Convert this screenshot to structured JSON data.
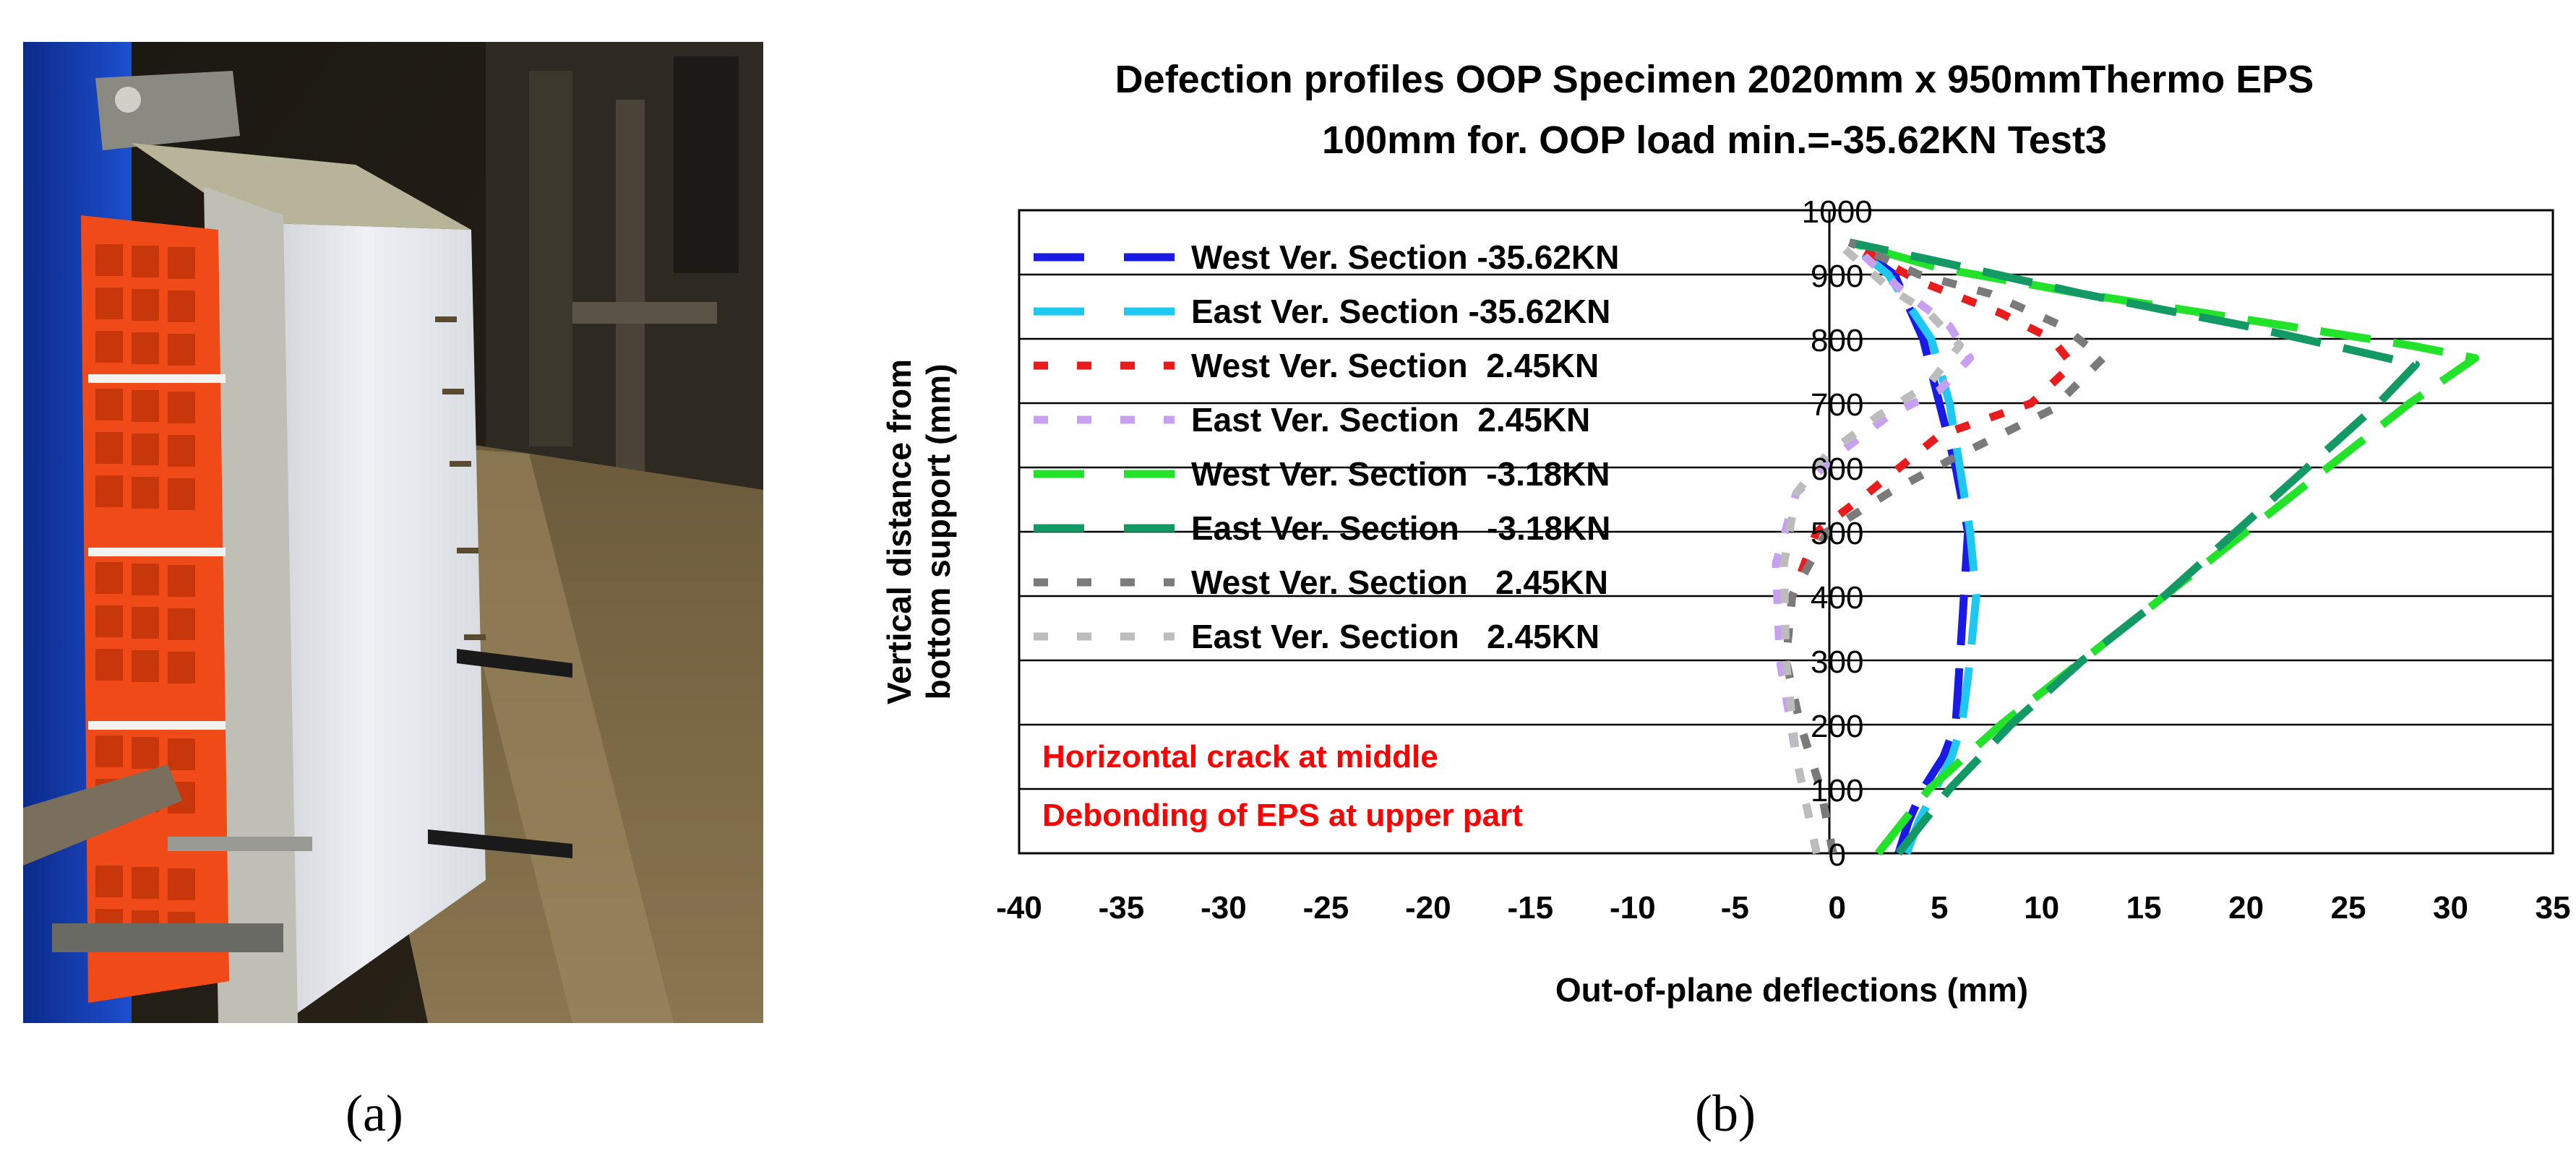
{
  "panel_labels": {
    "a": "(a)",
    "b": "(b)"
  },
  "photo": {
    "subject": "panel specimen photo"
  },
  "chart_data": {
    "type": "line",
    "title": [
      "Defection profiles OOP Specimen 2020mm x 950mmThermo EPS",
      "100mm for. OOP load min.=-35.62KN Test3"
    ],
    "xlabel": "Out-of-plane deflections (mm)",
    "ylabel": [
      "Vertical distance from",
      "bottom support (mm)"
    ],
    "xlim": [
      -40,
      35
    ],
    "ylim": [
      0,
      1000
    ],
    "xticks": [
      -40,
      -35,
      -30,
      -25,
      -20,
      -15,
      -10,
      -5,
      0,
      5,
      10,
      15,
      20,
      25,
      30,
      35
    ],
    "yticks": [
      0,
      100,
      200,
      300,
      400,
      500,
      600,
      700,
      800,
      900,
      1000
    ],
    "grid": "horizontal",
    "legend_position": "top-left",
    "series": [
      {
        "name": "West Ver. Section -35.62KN",
        "color": "#1a1ae6",
        "dash": "long",
        "x": [
          3.0,
          3.5,
          4.2,
          5.2,
          5.8,
          6.0,
          6.2,
          6.4,
          5.8,
          5.0,
          4.2,
          2.8,
          0.6
        ],
        "y": [
          0,
          50,
          100,
          150,
          200,
          300,
          400,
          500,
          600,
          700,
          800,
          900,
          950
        ]
      },
      {
        "name": "East Ver. Section -35.62KN",
        "color": "#1ec8f0",
        "dash": "long",
        "x": [
          3.4,
          4.0,
          4.8,
          5.6,
          6.1,
          6.5,
          6.8,
          6.5,
          6.0,
          5.5,
          4.6,
          2.5,
          0.6
        ],
        "y": [
          0,
          50,
          100,
          150,
          200,
          300,
          400,
          500,
          600,
          700,
          800,
          900,
          950
        ]
      },
      {
        "name": "West Ver. Section  2.45KN",
        "color": "#e81c1c",
        "dash": "short",
        "x": [
          -0.2,
          -0.8,
          -1.8,
          -2.5,
          -2.2,
          -1.0,
          1.5,
          5.0,
          9.5,
          11.5,
          10.5,
          8.0,
          4.0,
          0.6
        ],
        "y": [
          0,
          100,
          200,
          300,
          400,
          500,
          560,
          650,
          700,
          760,
          800,
          840,
          890,
          950
        ]
      },
      {
        "name": "East Ver. Section  2.45KN",
        "color": "#c8a0f0",
        "dash": "short",
        "x": [
          -1.0,
          -2.0,
          -2.8,
          -3.0,
          -2.0,
          0.0,
          2.5,
          5.0,
          6.5,
          5.5,
          3.0,
          0.6
        ],
        "y": [
          0,
          150,
          300,
          450,
          560,
          620,
          680,
          720,
          770,
          820,
          880,
          950
        ]
      },
      {
        "name": "West Ver. Section  -3.18KN",
        "color": "#22e22a",
        "dash": "long",
        "x": [
          2.0,
          4.5,
          8.0,
          12.0,
          16.0,
          20.0,
          24.0,
          28.0,
          31.2,
          28.0,
          20.0,
          12.0,
          5.0,
          0.6
        ],
        "y": [
          0,
          100,
          200,
          300,
          400,
          500,
          600,
          700,
          770,
          790,
          830,
          870,
          910,
          950
        ]
      },
      {
        "name": "East Ver. Section   -3.18KN",
        "color": "#139a64",
        "dash": "long",
        "x": [
          3.0,
          5.5,
          8.5,
          12.0,
          16.0,
          19.5,
          23.0,
          26.5,
          28.3,
          20.0,
          12.0,
          5.0,
          0.6
        ],
        "y": [
          0,
          100,
          200,
          300,
          400,
          500,
          600,
          700,
          760,
          820,
          870,
          920,
          950
        ]
      },
      {
        "name": "West Ver. Section   2.45KN",
        "color": "#7a7a7a",
        "dash": "short",
        "x": [
          -0.2,
          -0.8,
          -1.8,
          -2.5,
          -2.2,
          -0.5,
          2.5,
          6.0,
          10.5,
          13.0,
          11.0,
          7.5,
          4.0,
          0.6
        ],
        "y": [
          0,
          100,
          200,
          300,
          400,
          500,
          560,
          620,
          690,
          770,
          820,
          870,
          900,
          950
        ]
      },
      {
        "name": "East Ver. Section   2.45KN",
        "color": "#bcbcbc",
        "dash": "short",
        "x": [
          -1.0,
          -2.0,
          -2.5,
          -2.6,
          -2.0,
          -0.5,
          2.0,
          4.5,
          6.0,
          4.5,
          2.5,
          0.0
        ],
        "y": [
          0,
          150,
          300,
          450,
          560,
          620,
          680,
          730,
          790,
          840,
          880,
          950
        ]
      }
    ],
    "annotations": [
      "Horizontal crack at middle",
      "Debonding of EPS at upper part"
    ],
    "annotation_color": "#ff0000"
  }
}
